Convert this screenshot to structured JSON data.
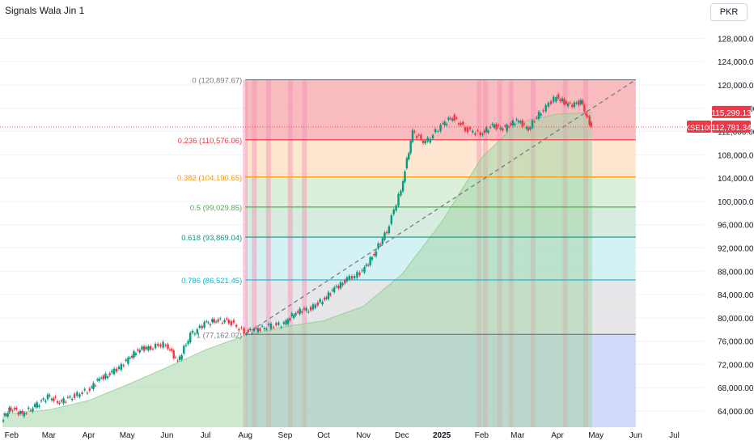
{
  "header": {
    "title": "Signals Wala Jin 1",
    "currency": "PKR"
  },
  "chart_data": {
    "type": "candlestick",
    "title": "Signals Wala Jin 1",
    "symbol": "KSE100",
    "currency": "PKR",
    "xlabel": "",
    "ylabel": "",
    "y_ticks": [
      64000,
      68000,
      72000,
      76000,
      80000,
      84000,
      88000,
      92000,
      96000,
      100000,
      104000,
      108000,
      112000,
      116000,
      120000,
      124000,
      128000
    ],
    "y_tick_labels": [
      "64,000.00",
      "68,000.00",
      "72,000.00",
      "76,000.00",
      "80,000.00",
      "84,000.00",
      "88,000.00",
      "92,000.00",
      "96,000.00",
      "100,000.00",
      "104,000.00",
      "108,000.00",
      "112,000.00",
      "116,000.00",
      "120,000.00",
      "124,000.00",
      "128,000.00"
    ],
    "x_tick_labels": [
      "Feb",
      "Mar",
      "Apr",
      "May",
      "Jun",
      "Jul",
      "Aug",
      "Sep",
      "Oct",
      "Nov",
      "Dec",
      "2025",
      "Feb",
      "Mar",
      "Apr",
      "May",
      "Jun",
      "Jul"
    ],
    "last_price": 112781.34,
    "last_price_label": "112,781.34",
    "ma_price_label": "115,299.13",
    "colors": {
      "up": "#089981",
      "down": "#f23645",
      "trend_area": "#c8e6c9",
      "dashed": "#787b86",
      "price_line": "#f23645"
    },
    "fibonacci": {
      "start_date": "2024-08-01",
      "end_date": "2025-06-01",
      "levels": [
        {
          "ratio": "0",
          "value": 120897.67,
          "label": "0 (120,897.67)",
          "color": "#787b86",
          "fill": "#f7b0b4"
        },
        {
          "ratio": "0.236",
          "value": 110576.06,
          "label": "0.236 (110,576.06)",
          "color": "#f23645",
          "fill": "#fde3c8"
        },
        {
          "ratio": "0.382",
          "value": 104190.65,
          "label": "0.382 (104,190.65)",
          "color": "#ff9800",
          "fill": "#d6ecd3"
        },
        {
          "ratio": "0.5",
          "value": 99029.85,
          "label": "0.5 (99,029.85)",
          "color": "#4caf50",
          "fill": "#cfe9d8"
        },
        {
          "ratio": "0.618",
          "value": 93869.04,
          "label": "0.618 (93,869.04)",
          "color": "#089981",
          "fill": "#cdeef2"
        },
        {
          "ratio": "0.786",
          "value": 86521.45,
          "label": "0.786 (86,521.45)",
          "color": "#00bcd4",
          "fill": "#e3e3e6"
        },
        {
          "ratio": "1",
          "value": 77162.02,
          "label": "1 (77,162.02)",
          "color": "#787b86",
          "fill": "#c9d3f7"
        }
      ]
    },
    "trend_line": {
      "start": [
        "2024-08-01",
        77162.02
      ],
      "end": [
        "2025-06-01",
        120897.67
      ]
    },
    "series": [
      {
        "name": "KSE100",
        "dates": [
          "2024-01-25",
          "2024-02-01",
          "2024-02-10",
          "2024-02-20",
          "2024-03-01",
          "2024-03-10",
          "2024-03-20",
          "2024-04-01",
          "2024-04-10",
          "2024-04-20",
          "2024-05-01",
          "2024-05-10",
          "2024-05-20",
          "2024-06-01",
          "2024-06-10",
          "2024-06-20",
          "2024-07-01",
          "2024-07-10",
          "2024-07-20",
          "2024-08-01",
          "2024-08-10",
          "2024-08-20",
          "2024-09-01",
          "2024-09-10",
          "2024-09-20",
          "2024-10-01",
          "2024-10-10",
          "2024-10-20",
          "2024-11-01",
          "2024-11-10",
          "2024-11-20",
          "2024-12-01",
          "2024-12-10",
          "2024-12-20",
          "2025-01-01",
          "2025-01-10",
          "2025-01-20",
          "2025-02-01",
          "2025-02-10",
          "2025-02-20",
          "2025-03-01",
          "2025-03-10",
          "2025-03-20",
          "2025-04-01",
          "2025-04-10",
          "2025-04-20",
          "2025-04-28"
        ],
        "close": [
          62500,
          64500,
          63500,
          64800,
          66500,
          65500,
          66500,
          67500,
          69500,
          70500,
          72500,
          74500,
          75000,
          75500,
          72500,
          77000,
          79000,
          79500,
          79500,
          77500,
          78000,
          78500,
          79000,
          81000,
          81500,
          83000,
          85000,
          86500,
          88000,
          91000,
          95000,
          102000,
          112000,
          110000,
          113000,
          114500,
          112500,
          111500,
          113000,
          112500,
          114000,
          112500,
          115500,
          118000,
          116500,
          117000,
          112781
        ]
      }
    ],
    "ma": {
      "dates": [
        "2024-01-25",
        "2024-03-01",
        "2024-04-01",
        "2024-05-01",
        "2024-06-01",
        "2024-07-01",
        "2024-08-01",
        "2024-09-01",
        "2024-10-01",
        "2024-11-01",
        "2024-12-01",
        "2025-01-01",
        "2025-02-01",
        "2025-03-01",
        "2025-04-01",
        "2025-04-28"
      ],
      "values": [
        63500,
        64200,
        65800,
        68500,
        71500,
        74500,
        77000,
        78500,
        79500,
        82000,
        87500,
        96500,
        107500,
        113500,
        115000,
        115299
      ]
    },
    "highlights": [
      "2024-08-01",
      "2024-08-08",
      "2024-08-19",
      "2024-09-05",
      "2024-09-16",
      "2025-01-30",
      "2025-02-04",
      "2025-02-15",
      "2025-02-24",
      "2025-03-13",
      "2025-04-07",
      "2025-04-23"
    ]
  }
}
